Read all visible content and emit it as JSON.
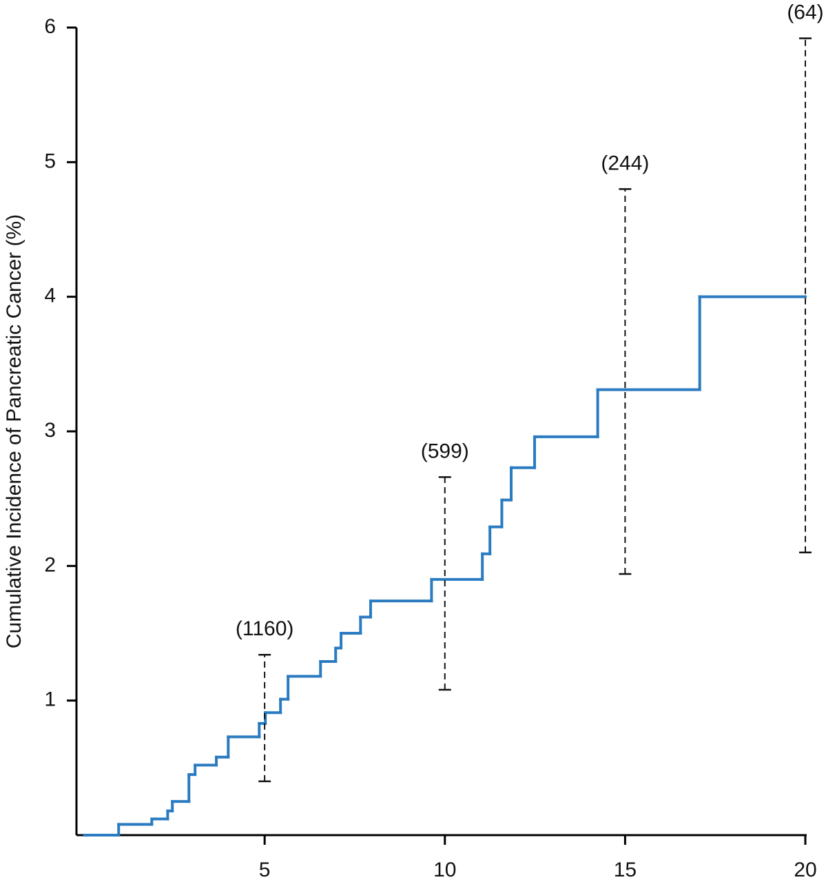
{
  "chart_data": {
    "type": "step",
    "y_label": "Cumulative Incidence of Pancreatic Cancer (%)",
    "x": [
      0,
      0.95,
      1.87,
      2.31,
      2.44,
      2.9,
      3.07,
      3.66,
      3.99,
      4.85,
      5.02,
      5.44,
      5.65,
      6.55,
      6.97,
      7.12,
      7.66,
      7.94,
      9.63,
      11.04,
      11.25,
      11.58,
      11.84,
      12.49,
      14.24,
      17.07
    ],
    "values": [
      0,
      0.08,
      0.12,
      0.18,
      0.25,
      0.45,
      0.52,
      0.58,
      0.73,
      0.83,
      0.91,
      1.01,
      1.18,
      1.29,
      1.39,
      1.5,
      1.62,
      1.74,
      1.9,
      2.09,
      2.29,
      2.49,
      2.73,
      2.96,
      3.31,
      4.0
    ],
    "color": "#2a7bc1",
    "error_bars": [
      {
        "x": 5,
        "low": 0.4,
        "high": 1.34,
        "label": "(1160)"
      },
      {
        "x": 10,
        "low": 1.08,
        "high": 2.66,
        "label": "(599)"
      },
      {
        "x": 15,
        "low": 1.94,
        "high": 4.8,
        "label": "(244)"
      },
      {
        "x": 20,
        "low": 2.1,
        "high": 5.92,
        "label": "(64)"
      }
    ],
    "xlim": [
      -0.22,
      20
    ],
    "xticks": [
      5,
      10,
      15,
      20
    ],
    "ylim": [
      0,
      6
    ],
    "yticks": [
      1,
      2,
      3,
      4,
      5,
      6
    ]
  }
}
